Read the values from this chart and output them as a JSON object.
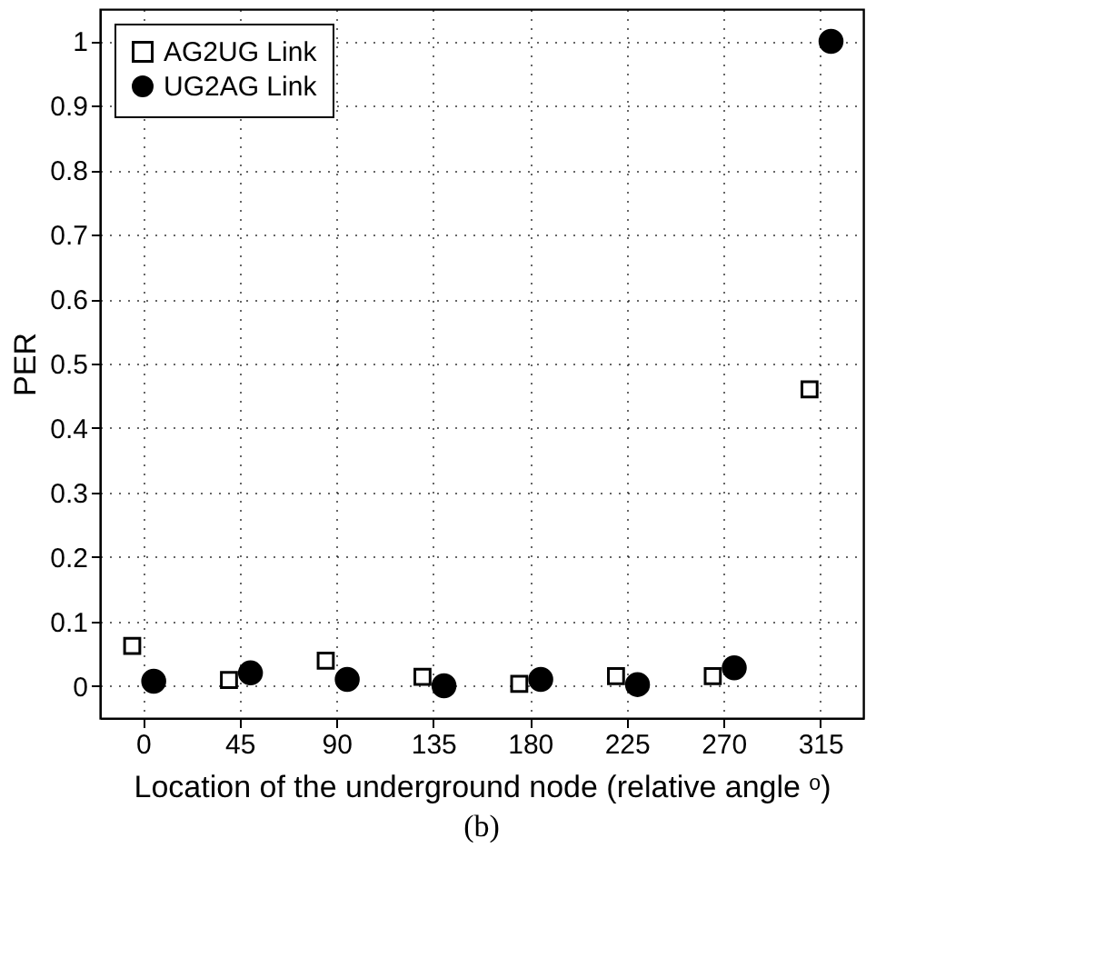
{
  "chart_data": {
    "type": "scatter",
    "xlabel": "Location of the underground node (relative angle ᵒ)",
    "ylabel": "PER",
    "annotations": [
      "(b)"
    ],
    "xlim": [
      -20,
      335
    ],
    "xticks": [
      0,
      45,
      90,
      135,
      180,
      225,
      270,
      315
    ],
    "ylim": [
      -0.05,
      1.05
    ],
    "yticks": [
      0,
      0.1,
      0.2,
      0.3,
      0.4,
      0.5,
      0.6,
      0.7,
      0.8,
      0.9,
      1
    ],
    "grid": true,
    "legend": "top left",
    "series": [
      {
        "name": "AG2UG Link",
        "color": "#000000",
        "marker": "square",
        "x": [
          -5,
          40,
          85,
          130,
          175,
          220,
          265,
          310
        ],
        "values": [
          0.062,
          0.009,
          0.039,
          0.014,
          0.003,
          0.015,
          0.015,
          0.46
        ]
      },
      {
        "name": "UG2AG Link",
        "color": "#000000",
        "marker": "circle",
        "x": [
          5,
          50,
          95,
          140,
          185,
          230,
          275,
          320
        ],
        "values": [
          0.007,
          0.02,
          0.01,
          0.0,
          0.01,
          0.002,
          0.028,
          1.0
        ]
      }
    ]
  }
}
